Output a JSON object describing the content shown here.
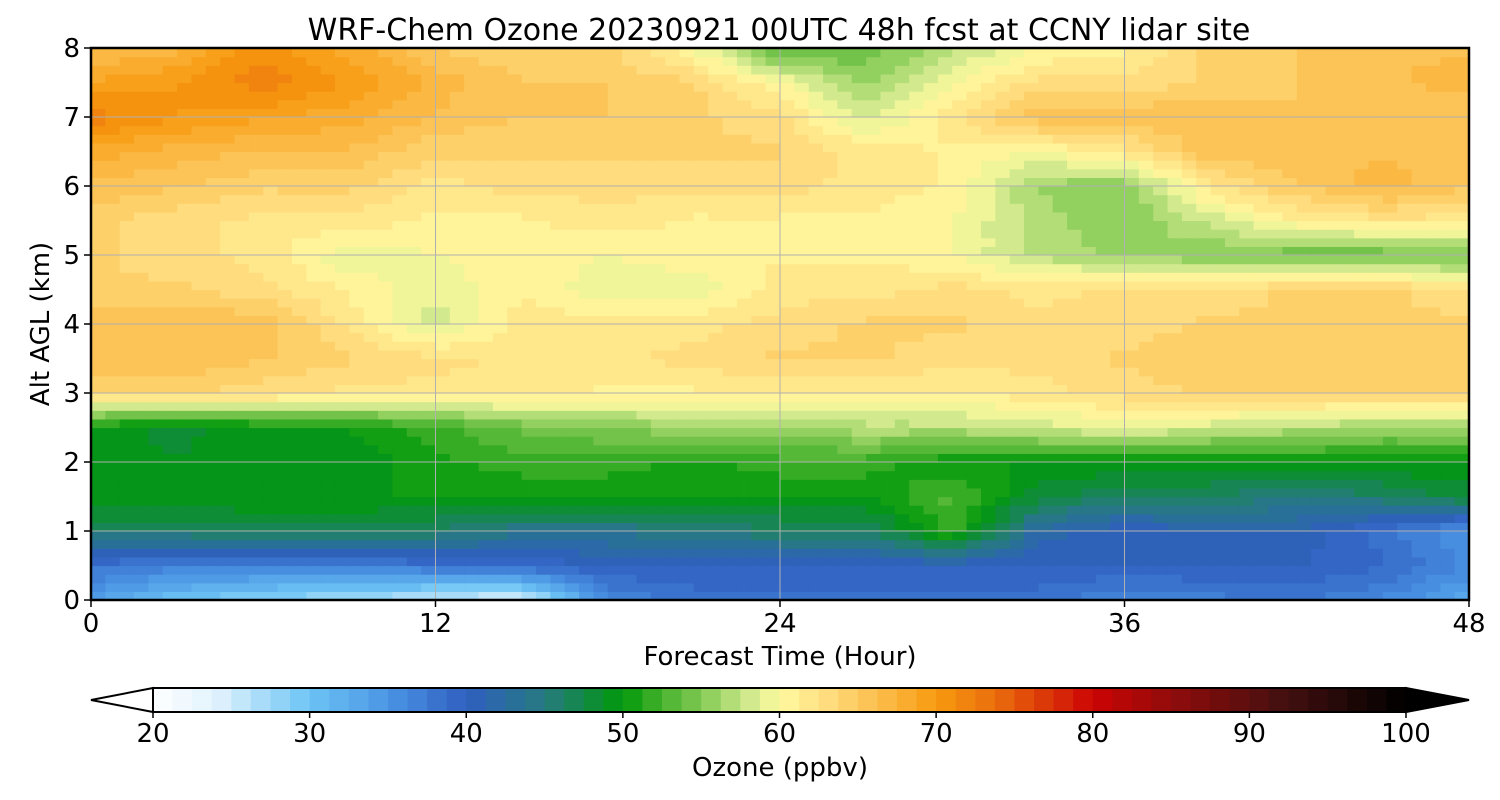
{
  "chart_data": {
    "type": "heatmap",
    "title": "WRF-Chem Ozone  20230921 00UTC 48h fcst at CCNY lidar site",
    "xlabel": "Forecast Time (Hour)",
    "ylabel": "Alt AGL (km)",
    "xlim": [
      0,
      48
    ],
    "ylim": [
      0,
      8
    ],
    "x_ticks": [
      0,
      12,
      24,
      36,
      48
    ],
    "y_ticks": [
      0,
      1,
      2,
      3,
      4,
      5,
      6,
      7,
      8
    ],
    "grid": true,
    "x": [
      0,
      3,
      6,
      9,
      12,
      15,
      18,
      21,
      24,
      27,
      30,
      33,
      36,
      39,
      42,
      45,
      48
    ],
    "y": [
      0,
      0.5,
      1,
      1.5,
      2,
      2.5,
      3,
      3.5,
      4,
      4.5,
      5,
      5.5,
      6,
      6.5,
      7,
      7.5,
      8
    ],
    "z": [
      [
        34,
        30,
        28,
        27,
        25,
        24,
        36,
        38,
        38,
        38,
        38,
        38,
        36,
        37,
        38,
        36,
        33
      ],
      [
        38,
        37,
        37,
        37,
        38,
        39,
        40,
        40,
        40,
        40,
        40,
        40,
        40,
        40,
        40,
        39,
        36
      ],
      [
        46,
        46,
        47,
        47,
        46,
        44,
        44,
        45,
        46,
        46,
        52,
        42,
        40,
        41,
        41,
        38,
        35
      ],
      [
        50,
        50,
        50,
        50,
        50,
        50,
        50,
        50,
        50,
        50,
        53,
        48,
        46,
        46,
        45,
        46,
        48
      ],
      [
        49,
        49,
        50,
        49,
        51,
        52,
        52,
        51,
        52,
        52,
        50,
        50,
        50,
        50,
        50,
        50,
        50
      ],
      [
        50,
        48,
        50,
        50,
        52,
        54,
        55,
        56,
        56,
        57,
        57,
        58,
        59,
        58,
        57,
        56,
        56
      ],
      [
        64,
        64,
        63,
        62,
        62,
        62,
        61,
        61,
        61,
        61,
        61,
        62,
        63,
        64,
        64,
        64,
        64
      ],
      [
        66,
        66,
        65,
        64,
        63,
        62,
        62,
        63,
        64,
        64,
        63,
        63,
        64,
        65,
        65,
        65,
        65
      ],
      [
        66,
        66,
        66,
        62,
        58,
        62,
        62,
        62,
        63,
        64,
        64,
        63,
        63,
        64,
        64,
        64,
        64
      ],
      [
        64,
        64,
        63,
        61,
        59,
        61,
        59,
        59,
        62,
        62,
        63,
        62,
        63,
        63,
        64,
        64,
        63
      ],
      [
        64,
        63,
        62,
        59,
        60,
        61,
        60,
        61,
        61,
        61,
        60,
        57,
        56,
        55,
        54,
        54,
        54
      ],
      [
        64,
        63,
        62,
        62,
        61,
        61,
        62,
        61,
        61,
        61,
        60,
        57,
        55,
        58,
        61,
        62,
        62
      ],
      [
        66,
        65,
        64,
        64,
        62,
        63,
        63,
        63,
        63,
        62,
        61,
        56,
        55,
        62,
        65,
        67,
        65
      ],
      [
        68,
        67,
        66,
        66,
        64,
        64,
        64,
        64,
        64,
        62,
        61,
        60,
        62,
        66,
        66,
        66,
        66
      ],
      [
        72,
        70,
        69,
        68,
        66,
        65,
        65,
        64,
        63,
        58,
        62,
        66,
        66,
        66,
        65,
        65,
        65
      ],
      [
        69,
        70,
        72,
        70,
        67,
        65,
        65,
        64,
        60,
        56,
        60,
        63,
        63,
        64,
        65,
        66,
        67
      ],
      [
        66,
        67,
        71,
        68,
        65,
        64,
        64,
        60,
        53,
        54,
        57,
        60,
        61,
        64,
        65,
        66,
        66
      ]
    ],
    "colorbar": {
      "label": "Ozone  (ppbv)",
      "min": 20,
      "max": 100,
      "ticks": [
        20,
        30,
        40,
        50,
        60,
        70,
        80,
        90,
        100
      ],
      "extend": "both",
      "orientation": "horizontal",
      "colors": [
        [
          20,
          "#ffffff"
        ],
        [
          24,
          "#e2f3fc"
        ],
        [
          30,
          "#6cc4f4"
        ],
        [
          35,
          "#4b95e4"
        ],
        [
          40,
          "#2f5fc0"
        ],
        [
          45,
          "#267a80"
        ],
        [
          50,
          "#00990a"
        ],
        [
          52,
          "#3aad26"
        ],
        [
          55,
          "#82c954"
        ],
        [
          58,
          "#cfe98c"
        ],
        [
          60,
          "#fffaa0"
        ],
        [
          63,
          "#ffdd80"
        ],
        [
          66,
          "#fcc050"
        ],
        [
          70,
          "#f79a10"
        ],
        [
          74,
          "#ea6a0c"
        ],
        [
          80,
          "#cc0404"
        ],
        [
          86,
          "#860c0c"
        ],
        [
          92,
          "#461010"
        ],
        [
          100,
          "#000000"
        ]
      ]
    }
  }
}
